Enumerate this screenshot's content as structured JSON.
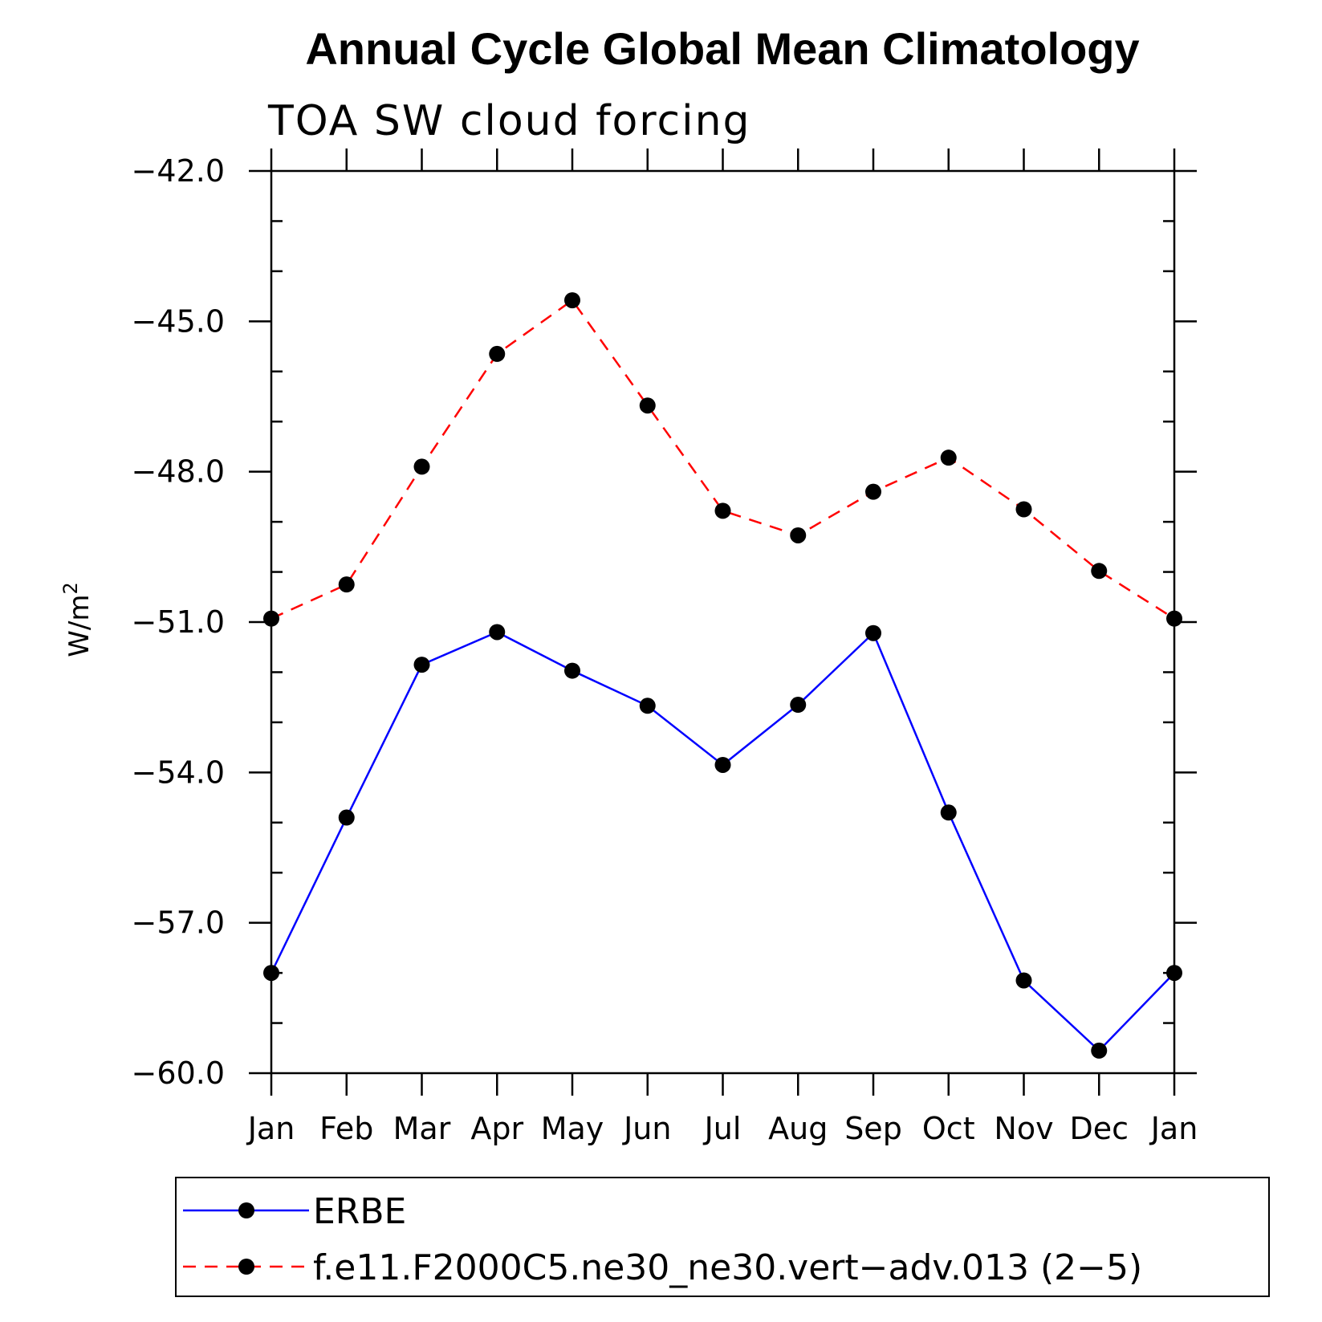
{
  "chart_data": {
    "type": "line",
    "title": "Annual Cycle Global Mean Climatology",
    "subtitle": "TOA SW cloud forcing",
    "ylabel": "W/m",
    "ylabel_sup": "2",
    "categories": [
      "Jan",
      "Feb",
      "Mar",
      "Apr",
      "May",
      "Jun",
      "Jul",
      "Aug",
      "Sep",
      "Oct",
      "Nov",
      "Dec",
      "Jan"
    ],
    "ylim": [
      -60.0,
      -42.0
    ],
    "yticks": [
      -42.0,
      -45.0,
      -48.0,
      -51.0,
      -54.0,
      -57.0,
      -60.0
    ],
    "ytick_labels": [
      "−42.0",
      "−45.0",
      "−48.0",
      "−51.0",
      "−54.0",
      "−57.0",
      "−60.0"
    ],
    "grid": false,
    "legend_position": "bottom",
    "series": [
      {
        "name": "ERBE",
        "color": "#0000ff",
        "dash": "solid",
        "values": [
          -58.0,
          -54.9,
          -51.85,
          -51.2,
          -51.97,
          -52.67,
          -53.85,
          -52.65,
          -51.22,
          -54.8,
          -58.15,
          -59.55,
          -58.0
        ]
      },
      {
        "name": "f.e11.F2000C5.ne30_ne30.vert−adv.013 (2−5)",
        "color": "#ff0000",
        "dash": "dashed",
        "values": [
          -50.93,
          -50.25,
          -47.9,
          -45.65,
          -44.58,
          -46.68,
          -48.78,
          -49.27,
          -48.4,
          -47.72,
          -48.75,
          -49.98,
          -50.93
        ]
      }
    ]
  }
}
